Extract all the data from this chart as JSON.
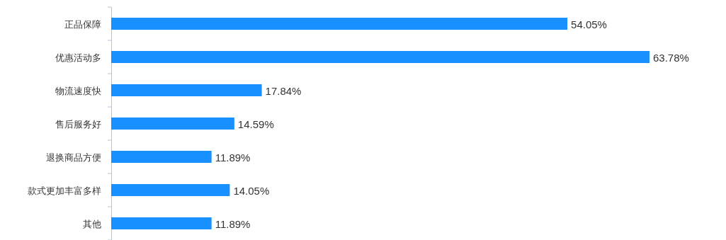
{
  "chart_data": {
    "type": "bar",
    "orientation": "horizontal",
    "categories": [
      "正品保障",
      "优惠活动多",
      "物流速度快",
      "售后服务好",
      "退换商品方便",
      "款式更加丰富多样",
      "其他"
    ],
    "values": [
      54.05,
      63.78,
      17.84,
      14.59,
      11.89,
      14.05,
      11.89
    ],
    "value_labels": [
      "54.05%",
      "63.78%",
      "17.84%",
      "14.59%",
      "11.89%",
      "14.05%",
      "11.89%"
    ],
    "color": "#1890ff",
    "grid": false
  }
}
